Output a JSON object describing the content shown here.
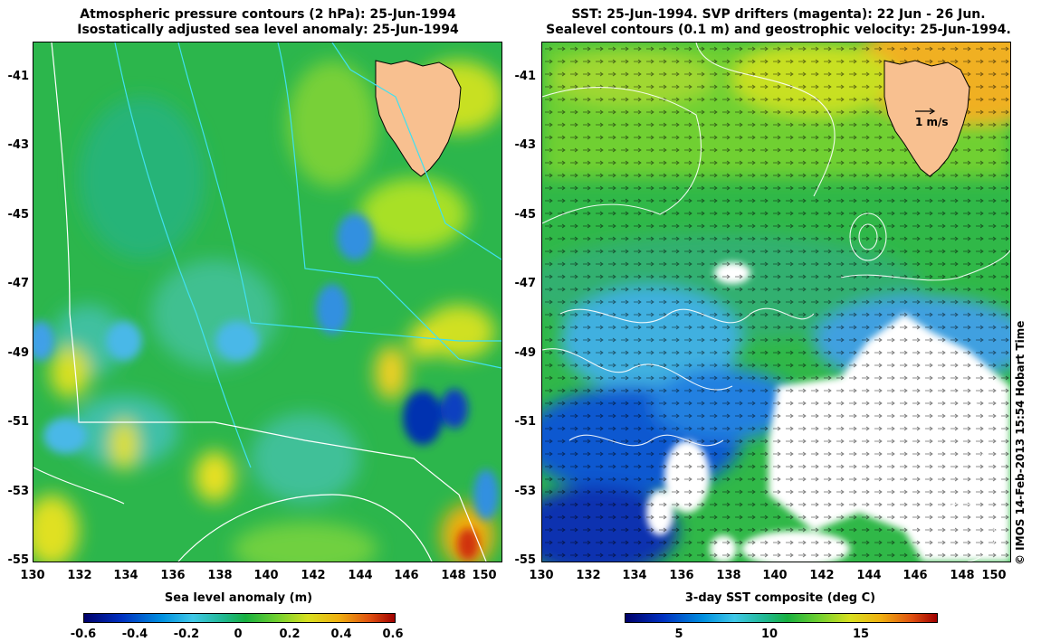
{
  "left": {
    "title_line1": "Atmospheric pressure contours (2 hPa): 25-Jun-1994",
    "title_line2": "Isostatically adjusted sea level anomaly: 25-Jun-1994",
    "colorbar_title": "Sea level anomaly (m)",
    "colorbar_ticks": [
      "-0.6",
      "-0.4",
      "-0.2",
      "0",
      "0.2",
      "0.4",
      "0.6"
    ]
  },
  "right": {
    "title_line1": "SST: 25-Jun-1994. SVP drifters (magenta): 22 Jun - 26 Jun.",
    "title_line2": "Sealevel contours (0.1 m) and geostrophic velocity: 25-Jun-1994.",
    "colorbar_title": "3-day SST composite (deg C)",
    "colorbar_ticks": [
      "5",
      "10",
      "15"
    ],
    "velocity_scale_label": "1 m/s"
  },
  "axes": {
    "x_ticks": [
      "130",
      "132",
      "134",
      "136",
      "138",
      "140",
      "142",
      "144",
      "146",
      "148",
      "150"
    ],
    "y_ticks": [
      "-41",
      "-43",
      "-45",
      "-47",
      "-49",
      "-51",
      "-53",
      "-55"
    ]
  },
  "credit": "© IMOS 14-Feb-2013 15:54 Hobart Time",
  "colors": {
    "land": "#f8c090",
    "ocean_base": "#30b848",
    "contour_cyan": "#40e0f0",
    "contour_white": "#ffffff"
  }
}
